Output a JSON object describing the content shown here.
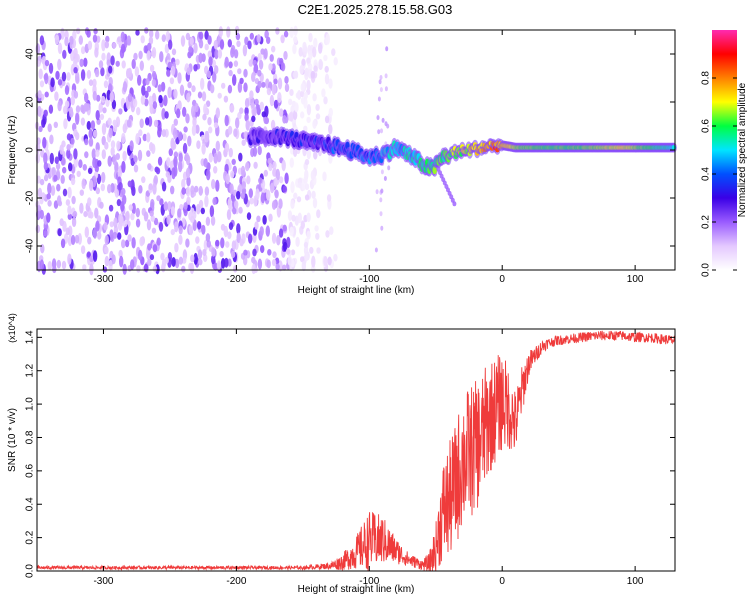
{
  "title": "C2E1.2025.278.15.58.G03",
  "chart_data": [
    {
      "type": "heatmap",
      "name": "spectrogram",
      "xlabel": "Height of straight line (km)",
      "ylabel": "Frequency (Hz)",
      "xlim": [
        -350,
        130
      ],
      "ylim": [
        -50,
        50
      ],
      "x_ticks": [
        -300,
        -200,
        -100,
        0,
        100
      ],
      "y_ticks": [
        -40,
        -20,
        0,
        20,
        40
      ],
      "colorbar": {
        "label": "Normalized spectral amplitude",
        "range": [
          0,
          1
        ],
        "ticks": [
          0.0,
          0.2,
          0.4,
          0.6,
          0.8
        ],
        "tick_labels": [
          "0.0",
          "0.2",
          "0.4",
          "0.6",
          "0.8"
        ],
        "colors": [
          "#ffffff",
          "#e4c8ff",
          "#9a5cff",
          "#3a00e6",
          "#0050ff",
          "#00e5ff",
          "#00ff40",
          "#ffff00",
          "#ff8000",
          "#ff0000",
          "#ff2ab0"
        ]
      },
      "carrier_track": {
        "x": [
          -190,
          -175,
          -160,
          -145,
          -130,
          -115,
          -100,
          -90,
          -80,
          -70,
          -60,
          -52,
          -45,
          -35,
          -25,
          -15,
          -5,
          0,
          10,
          30,
          60,
          90,
          130
        ],
        "y": [
          5,
          6,
          5,
          3,
          2,
          0,
          -3,
          -2,
          1,
          -2,
          -6,
          -8,
          -3,
          -1,
          0,
          1,
          2,
          2,
          1,
          1,
          1,
          1,
          1
        ],
        "amplitude": [
          0.25,
          0.25,
          0.3,
          0.3,
          0.35,
          0.4,
          0.4,
          0.45,
          0.5,
          0.5,
          0.55,
          0.6,
          0.6,
          0.65,
          0.7,
          0.75,
          0.8,
          0.75,
          0.65,
          0.6,
          0.62,
          0.7,
          0.5
        ]
      },
      "noise_region_x": [
        -350,
        -140
      ],
      "noise_amplitude": [
        0.1,
        0.2
      ]
    },
    {
      "type": "line",
      "name": "snr",
      "xlabel": "Height of straight line (km)",
      "ylabel": "SNR (10 * v/v)",
      "y_multiplier": "(x10^4)",
      "xlim": [
        -350,
        130
      ],
      "ylim": [
        0.0,
        1.45
      ],
      "x_ticks": [
        -300,
        -200,
        -100,
        0,
        100
      ],
      "y_ticks": [
        0.0,
        0.2,
        0.4,
        0.6,
        0.8,
        1.0,
        1.2,
        1.4
      ],
      "y_tick_labels": [
        "0.0",
        "0.2",
        "0.4",
        "0.6",
        "0.8",
        "1.0",
        "1.2",
        "1.4"
      ],
      "series": [
        {
          "name": "SNR",
          "color": "#ef3b3b",
          "x": [
            -350,
            -300,
            -250,
            -200,
            -150,
            -130,
            -120,
            -110,
            -100,
            -90,
            -80,
            -70,
            -60,
            -55,
            -50,
            -45,
            -40,
            -35,
            -30,
            -25,
            -20,
            -15,
            -10,
            -5,
            0,
            5,
            10,
            15,
            20,
            25,
            30,
            35,
            40,
            50,
            60,
            70,
            80,
            90,
            100,
            110,
            120,
            130
          ],
          "y": [
            0.02,
            0.02,
            0.02,
            0.02,
            0.02,
            0.03,
            0.06,
            0.12,
            0.2,
            0.2,
            0.13,
            0.07,
            0.04,
            0.05,
            0.15,
            0.38,
            0.45,
            0.55,
            0.7,
            0.75,
            0.78,
            0.85,
            0.95,
            1.0,
            1.05,
            1.0,
            0.9,
            1.1,
            1.25,
            1.3,
            1.35,
            1.37,
            1.38,
            1.39,
            1.4,
            1.41,
            1.41,
            1.41,
            1.4,
            1.4,
            1.39,
            1.38
          ],
          "noise": [
            0.01,
            0.01,
            0.01,
            0.01,
            0.01,
            0.02,
            0.05,
            0.1,
            0.18,
            0.15,
            0.08,
            0.04,
            0.03,
            0.06,
            0.15,
            0.3,
            0.35,
            0.38,
            0.4,
            0.4,
            0.4,
            0.38,
            0.35,
            0.32,
            0.3,
            0.25,
            0.2,
            0.15,
            0.08,
            0.05,
            0.04,
            0.03,
            0.03,
            0.03,
            0.03,
            0.03,
            0.03,
            0.03,
            0.03,
            0.03,
            0.03,
            0.03
          ]
        }
      ]
    }
  ]
}
